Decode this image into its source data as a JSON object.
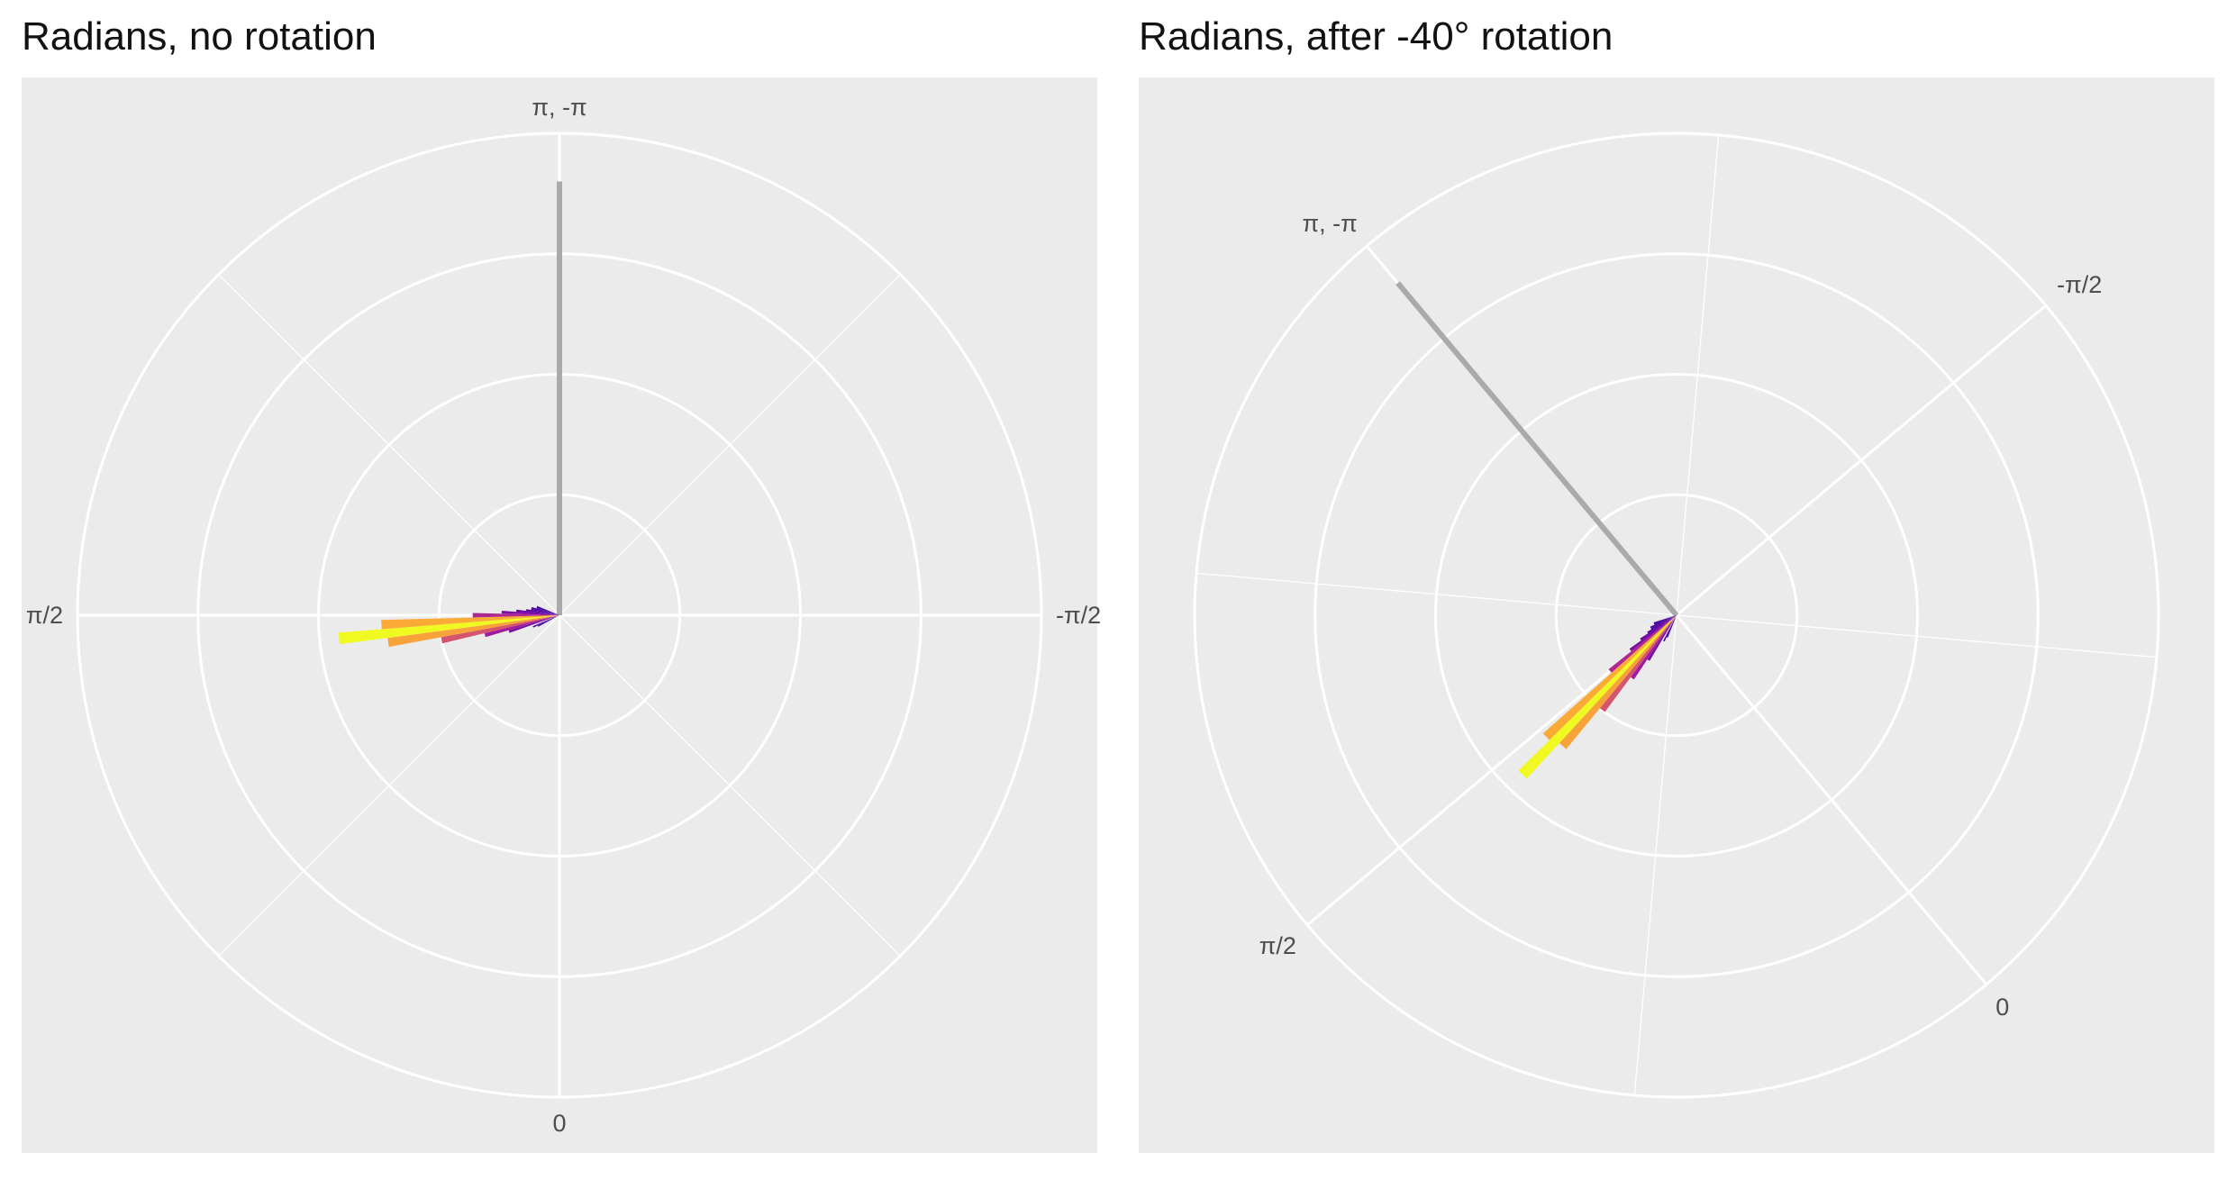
{
  "chart_data": [
    {
      "type": "bar",
      "subtype": "polar-histogram",
      "title": "Radians, no rotation",
      "rotation_degrees": 0,
      "theta_labels": [
        {
          "text": "0",
          "angle": 0
        },
        {
          "text": "π/2",
          "angle": 1.5708
        },
        {
          "text": "π, -π",
          "angle": 3.1416
        },
        {
          "text": "-π/2",
          "angle": -1.5708
        }
      ],
      "radial_gridlines": 4,
      "grid": true,
      "background": "#ebebeb",
      "grid_color": "#ffffff",
      "reference_line": {
        "angle": 3.1416,
        "value": 0.9,
        "color": "#aaaaaa"
      },
      "bars": [
        {
          "angle": 1.2566,
          "value": 0.11
        },
        {
          "angle": 1.309,
          "value": 0.16
        },
        {
          "angle": 1.3614,
          "value": 0.25
        },
        {
          "angle": 1.4137,
          "value": 0.36
        },
        {
          "angle": 1.4661,
          "value": 0.46
        },
        {
          "angle": 1.5184,
          "value": 0.37
        },
        {
          "angle": 1.5708,
          "value": 0.18
        },
        {
          "angle": 1.6232,
          "value": 0.12
        },
        {
          "angle": 1.6755,
          "value": 0.09
        },
        {
          "angle": 1.7279,
          "value": 0.07
        },
        {
          "angle": 1.7802,
          "value": 0.06
        },
        {
          "angle": 1.8326,
          "value": 0.06
        },
        {
          "angle": 1.885,
          "value": 0.05
        },
        {
          "angle": 1.9373,
          "value": 0.05
        },
        {
          "angle": 1.1519,
          "value": 0.06
        },
        {
          "angle": 1.0996,
          "value": 0.05
        }
      ]
    },
    {
      "type": "bar",
      "subtype": "polar-histogram",
      "title": "Radians, after -40° rotation",
      "rotation_degrees": -40,
      "theta_labels": [
        {
          "text": "0",
          "angle": 0
        },
        {
          "text": "π/2",
          "angle": 1.5708
        },
        {
          "text": "π, -π",
          "angle": 3.1416
        },
        {
          "text": "-π/2",
          "angle": -1.5708
        }
      ],
      "radial_gridlines": 4,
      "grid": true,
      "background": "#ebebeb",
      "grid_color": "#ffffff",
      "reference_line": {
        "angle": 3.1416,
        "value": 0.9,
        "color": "#aaaaaa"
      },
      "bars": [
        {
          "angle": 1.2566,
          "value": 0.11
        },
        {
          "angle": 1.309,
          "value": 0.16
        },
        {
          "angle": 1.3614,
          "value": 0.25
        },
        {
          "angle": 1.4137,
          "value": 0.36
        },
        {
          "angle": 1.4661,
          "value": 0.46
        },
        {
          "angle": 1.5184,
          "value": 0.37
        },
        {
          "angle": 1.5708,
          "value": 0.18
        },
        {
          "angle": 1.6232,
          "value": 0.12
        },
        {
          "angle": 1.6755,
          "value": 0.09
        },
        {
          "angle": 1.7279,
          "value": 0.07
        },
        {
          "angle": 1.7802,
          "value": 0.06
        },
        {
          "angle": 1.8326,
          "value": 0.06
        },
        {
          "angle": 1.885,
          "value": 0.05
        },
        {
          "angle": 1.9373,
          "value": 0.05
        },
        {
          "angle": 1.1519,
          "value": 0.06
        },
        {
          "angle": 1.0996,
          "value": 0.05
        }
      ]
    }
  ],
  "colormap": [
    "#0d0887",
    "#5c01a6",
    "#9c179e",
    "#cc4778",
    "#ed7953",
    "#fdb42f",
    "#f0f921"
  ]
}
